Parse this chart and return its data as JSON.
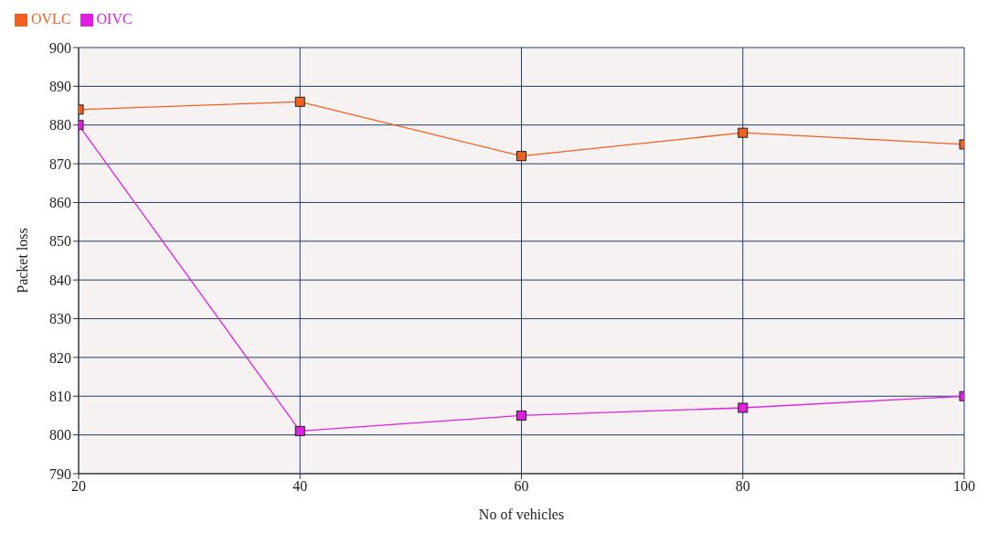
{
  "chart_data": {
    "type": "line",
    "xlabel": "No of vehicles",
    "ylabel": "Packet loss",
    "x": [
      20,
      40,
      60,
      80,
      100
    ],
    "series": [
      {
        "name": "OVLC",
        "color": "#f06020",
        "values": [
          884,
          886,
          872,
          878,
          875
        ]
      },
      {
        "name": "OIVC",
        "color": "#e020e0",
        "values": [
          880,
          801,
          805,
          807,
          810
        ]
      }
    ],
    "xlim": [
      20,
      100
    ],
    "xticks": [
      20,
      40,
      60,
      80,
      100
    ],
    "ylim": [
      790,
      900
    ],
    "yticks": [
      790,
      800,
      810,
      820,
      830,
      840,
      850,
      860,
      870,
      880,
      890,
      900
    ],
    "grid": true,
    "legend": "top left",
    "marker": "square",
    "line_style": "solid"
  }
}
